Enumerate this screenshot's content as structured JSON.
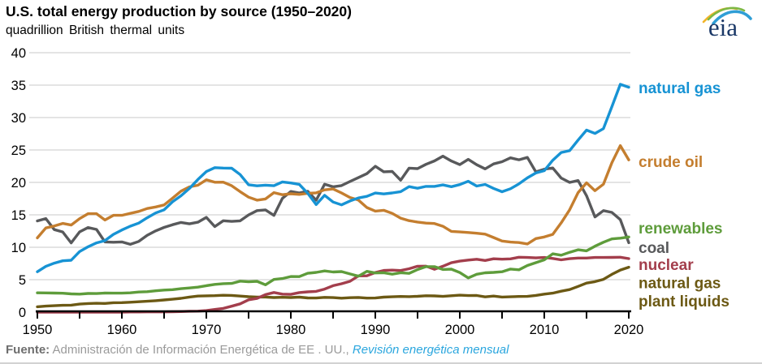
{
  "header": {
    "title": "U.S. total energy production by source (1950–2020)",
    "subtitle": "quadrillion British thermal units"
  },
  "logo": {
    "text": "eia",
    "text_color": "#1a3867",
    "arc_colors": {
      "yellow": "#f2b52a",
      "green": "#7cb845",
      "blue": "#2f9ed6"
    }
  },
  "footer": {
    "source_label": "Fuente:",
    "source_text": " Administración de Información Energética de EE . UU., ",
    "link_text": "Revisión energética mensual"
  },
  "chart_data": {
    "type": "line",
    "title": "U.S. total energy production by source (1950–2020)",
    "ylabel": "quadrillion British thermal units",
    "xlabel": "",
    "x_range": [
      1950,
      2020
    ],
    "ylim": [
      0,
      40
    ],
    "yticks": [
      0,
      5,
      10,
      15,
      20,
      25,
      30,
      35,
      40
    ],
    "xticks_major": [
      1950,
      1960,
      1970,
      1980,
      1990,
      2000,
      2010,
      2020
    ],
    "xtick_minor_step": 5,
    "grid": "horizontal-light",
    "grid_color": "#dcdcdc",
    "axis_color": "#000000",
    "legend_position": "right-of-lines",
    "years": [
      1950,
      1951,
      1952,
      1953,
      1954,
      1955,
      1956,
      1957,
      1958,
      1959,
      1960,
      1961,
      1962,
      1963,
      1964,
      1965,
      1966,
      1967,
      1968,
      1969,
      1970,
      1971,
      1972,
      1973,
      1974,
      1975,
      1976,
      1977,
      1978,
      1979,
      1980,
      1981,
      1982,
      1983,
      1984,
      1985,
      1986,
      1987,
      1988,
      1989,
      1990,
      1991,
      1992,
      1993,
      1994,
      1995,
      1996,
      1997,
      1998,
      1999,
      2000,
      2001,
      2002,
      2003,
      2004,
      2005,
      2006,
      2007,
      2008,
      2009,
      2010,
      2011,
      2012,
      2013,
      2014,
      2015,
      2016,
      2017,
      2018,
      2019,
      2020
    ],
    "series": [
      {
        "name": "coal",
        "color": "#58595b",
        "label_lines": [
          "coal"
        ],
        "label_y": 9.75,
        "values": [
          14.06,
          14.42,
          12.73,
          12.36,
          10.68,
          12.37,
          13.04,
          12.75,
          10.82,
          10.78,
          10.82,
          10.45,
          10.9,
          11.85,
          12.52,
          13.06,
          13.47,
          13.83,
          13.61,
          13.86,
          14.61,
          13.19,
          14.09,
          13.99,
          14.07,
          14.99,
          15.65,
          15.76,
          14.91,
          17.54,
          18.6,
          18.38,
          18.64,
          17.25,
          19.72,
          19.33,
          19.51,
          20.14,
          20.74,
          21.35,
          22.49,
          21.64,
          21.69,
          20.34,
          22.2,
          22.13,
          22.79,
          23.31,
          24.05,
          23.3,
          22.74,
          23.55,
          22.73,
          22.09,
          22.85,
          23.19,
          23.79,
          23.49,
          23.85,
          21.62,
          22.04,
          22.22,
          20.68,
          20.0,
          20.29,
          17.95,
          14.67,
          15.65,
          15.37,
          14.26,
          10.7
        ]
      },
      {
        "name": "crude oil",
        "color": "#c47e2f",
        "label_lines": [
          "crude oil"
        ],
        "label_y": 23.0,
        "values": [
          11.45,
          12.98,
          13.28,
          13.67,
          13.43,
          14.41,
          15.18,
          15.17,
          14.2,
          14.93,
          14.93,
          15.22,
          15.52,
          15.97,
          16.21,
          16.52,
          17.57,
          18.65,
          19.31,
          19.56,
          20.4,
          20.03,
          20.04,
          19.49,
          18.57,
          17.73,
          17.26,
          17.45,
          18.43,
          18.1,
          18.25,
          18.15,
          18.31,
          18.39,
          18.85,
          18.99,
          18.38,
          17.67,
          17.28,
          16.12,
          15.57,
          15.7,
          15.22,
          14.49,
          14.1,
          13.89,
          13.72,
          13.66,
          13.24,
          12.45,
          12.36,
          12.28,
          12.16,
          12.03,
          11.5,
          10.96,
          10.8,
          10.72,
          10.51,
          11.34,
          11.59,
          11.99,
          13.76,
          15.78,
          18.43,
          19.94,
          18.73,
          19.72,
          23.03,
          25.68,
          23.47
        ]
      },
      {
        "name": "natural gas plant liquids",
        "color": "#6c5914",
        "label_lines": [
          "natural gas",
          "plant liquids"
        ],
        "label_y": 4.3,
        "values": [
          0.82,
          0.93,
          0.99,
          1.05,
          1.07,
          1.24,
          1.32,
          1.36,
          1.34,
          1.45,
          1.46,
          1.53,
          1.6,
          1.67,
          1.76,
          1.88,
          1.99,
          2.12,
          2.33,
          2.47,
          2.51,
          2.54,
          2.6,
          2.57,
          2.47,
          2.37,
          2.33,
          2.33,
          2.25,
          2.29,
          2.25,
          2.31,
          2.19,
          2.18,
          2.27,
          2.24,
          2.15,
          2.22,
          2.26,
          2.16,
          2.17,
          2.31,
          2.36,
          2.41,
          2.39,
          2.44,
          2.53,
          2.5,
          2.42,
          2.53,
          2.61,
          2.55,
          2.56,
          2.35,
          2.47,
          2.33,
          2.36,
          2.41,
          2.42,
          2.57,
          2.78,
          2.93,
          3.22,
          3.47,
          3.96,
          4.47,
          4.7,
          5.05,
          5.83,
          6.49,
          6.93
        ]
      },
      {
        "name": "nuclear",
        "color": "#a33e4c",
        "label_lines": [
          "nuclear"
        ],
        "label_y": 7.1,
        "values": [
          0,
          0,
          0,
          0,
          0,
          0,
          0,
          0.001,
          0.002,
          0.002,
          0.006,
          0.02,
          0.03,
          0.04,
          0.04,
          0.04,
          0.06,
          0.09,
          0.14,
          0.15,
          0.24,
          0.41,
          0.58,
          0.91,
          1.27,
          1.9,
          2.11,
          2.7,
          3.02,
          2.78,
          2.74,
          3.01,
          3.13,
          3.2,
          3.55,
          4.08,
          4.38,
          4.75,
          5.59,
          5.6,
          6.1,
          6.42,
          6.48,
          6.41,
          6.69,
          7.08,
          7.09,
          6.6,
          7.07,
          7.61,
          7.86,
          8.03,
          8.15,
          7.96,
          8.22,
          8.16,
          8.21,
          8.46,
          8.43,
          8.36,
          8.43,
          8.27,
          8.06,
          8.24,
          8.34,
          8.34,
          8.43,
          8.42,
          8.44,
          8.46,
          8.25
        ]
      },
      {
        "name": "renewables",
        "color": "#5e9c3b",
        "label_lines": [
          "renewables"
        ],
        "label_y": 12.75,
        "values": [
          2.98,
          2.96,
          2.94,
          2.91,
          2.81,
          2.78,
          2.88,
          2.86,
          2.94,
          2.93,
          2.93,
          2.97,
          3.1,
          3.15,
          3.29,
          3.4,
          3.46,
          3.61,
          3.72,
          3.85,
          4.07,
          4.27,
          4.39,
          4.43,
          4.77,
          4.69,
          4.75,
          4.21,
          5.04,
          5.17,
          5.49,
          5.47,
          5.99,
          6.13,
          6.35,
          6.19,
          6.25,
          5.89,
          5.54,
          6.29,
          6.04,
          6.07,
          5.85,
          6.07,
          5.98,
          6.56,
          7.01,
          7.01,
          6.57,
          6.62,
          6.1,
          5.27,
          5.84,
          6.06,
          6.12,
          6.23,
          6.64,
          6.52,
          7.19,
          7.62,
          8.06,
          8.99,
          8.78,
          9.23,
          9.61,
          9.45,
          10.16,
          10.78,
          11.29,
          11.4,
          11.59
        ]
      },
      {
        "name": "natural gas",
        "color": "#1793d4",
        "label_lines": [
          "natural gas"
        ],
        "label_y": 34.35,
        "values": [
          6.23,
          7.05,
          7.55,
          7.91,
          8.0,
          9.34,
          10.08,
          10.68,
          11.03,
          11.99,
          12.66,
          13.25,
          13.73,
          14.55,
          15.29,
          15.78,
          17.01,
          17.94,
          19.07,
          20.45,
          21.67,
          22.28,
          22.21,
          22.19,
          21.21,
          19.64,
          19.48,
          19.57,
          19.49,
          20.08,
          19.91,
          19.7,
          18.32,
          16.59,
          18.01,
          16.98,
          16.54,
          17.14,
          17.6,
          17.85,
          18.36,
          18.23,
          18.38,
          18.58,
          19.35,
          19.1,
          19.39,
          19.39,
          19.61,
          19.34,
          19.66,
          20.17,
          19.44,
          19.69,
          19.07,
          18.56,
          19.02,
          19.77,
          20.7,
          21.45,
          21.81,
          23.41,
          24.61,
          24.9,
          26.52,
          28.06,
          27.55,
          28.29,
          31.67,
          35.13,
          34.68
        ]
      }
    ]
  }
}
